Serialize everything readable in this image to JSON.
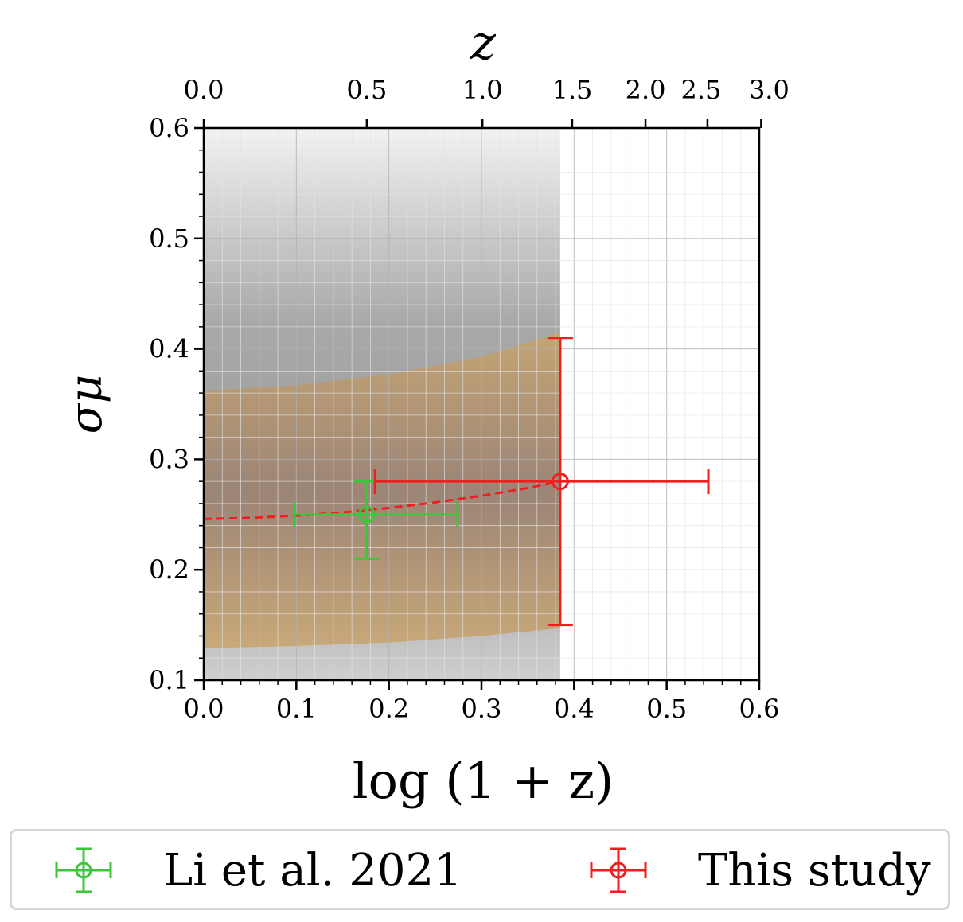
{
  "chart_data": {
    "type": "scatter",
    "top_axis": {
      "label": "z",
      "ticks": [
        "0.0",
        "0.5",
        "1.0",
        "1.5",
        "2.0",
        "2.5",
        "3.0"
      ]
    },
    "xaxis": {
      "label": "log (1 + z)",
      "lim": [
        0.0,
        0.6
      ],
      "ticks": [
        "0.0",
        "0.1",
        "0.2",
        "0.3",
        "0.4",
        "0.5",
        "0.6"
      ]
    },
    "yaxis": {
      "label": "σμ",
      "lim": [
        0.1,
        0.6
      ],
      "ticks": [
        "0.1",
        "0.2",
        "0.3",
        "0.4",
        "0.5",
        "0.6"
      ]
    },
    "grid": true,
    "series": [
      {
        "name": "Li et al. 2021",
        "color": "#3cc63c",
        "x": 0.176,
        "y": 0.25,
        "xerr": [
          0.078,
          0.098
        ],
        "yerr": [
          0.04,
          0.03
        ]
      },
      {
        "name": "This study",
        "color": "#f01e1e",
        "x": 0.385,
        "y": 0.28,
        "xerr": [
          0.2,
          0.16
        ],
        "yerr": [
          0.13,
          0.13
        ]
      }
    ],
    "fit_curve": {
      "color": "#f01e1e",
      "style": "dashed",
      "x": [
        0.0,
        0.05,
        0.1,
        0.15,
        0.2,
        0.25,
        0.3,
        0.35,
        0.385
      ],
      "y": [
        0.246,
        0.247,
        0.249,
        0.252,
        0.256,
        0.261,
        0.267,
        0.274,
        0.28
      ]
    },
    "grey_band": {
      "x": [
        0.0,
        0.1,
        0.2,
        0.3,
        0.385
      ],
      "low": [
        0.1,
        0.1,
        0.1,
        0.1,
        0.1
      ],
      "high": [
        0.6,
        0.6,
        0.6,
        0.6,
        0.6
      ]
    },
    "orange_band": {
      "color": "#c8a36a",
      "x": [
        0.0,
        0.1,
        0.2,
        0.3,
        0.385
      ],
      "low": [
        0.129,
        0.131,
        0.134,
        0.14,
        0.147
      ],
      "high": [
        0.362,
        0.367,
        0.377,
        0.393,
        0.415
      ]
    },
    "legend_position": "bottom"
  }
}
